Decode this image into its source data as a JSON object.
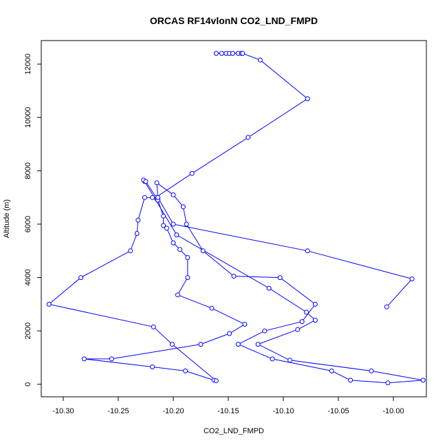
{
  "chart_data": {
    "type": "line",
    "title": "ORCAS RF14vlonN CO2_LND_FMPD",
    "xlabel": "CO2_LND_FMPD",
    "ylabel": "Altitude (m)",
    "xlim": [
      -10.32,
      -9.97
    ],
    "ylim": [
      -470,
      12880
    ],
    "xticks": [
      -10.3,
      -10.25,
      -10.2,
      -10.15,
      -10.1,
      -10.05,
      -10.0
    ],
    "xtick_labels": [
      "-10.30",
      "-10.25",
      "-10.20",
      "-10.15",
      "-10.10",
      "-10.05",
      "-10.00"
    ],
    "yticks": [
      0,
      2000,
      4000,
      6000,
      8000,
      10000,
      12000
    ],
    "ytick_labels": [
      "0",
      "2000",
      "4000",
      "6000",
      "8000",
      "10000",
      "12000"
    ],
    "grid": false,
    "series": [
      {
        "color": "#0000ff",
        "marker": "open-circle",
        "points": [
          [
            -10.161,
            12400
          ],
          [
            -10.156,
            12400
          ],
          [
            -10.152,
            12400
          ],
          [
            -10.149,
            12400
          ],
          [
            -10.146,
            12400
          ],
          [
            -10.141,
            12400
          ],
          [
            -10.138,
            12400
          ],
          [
            -10.137,
            12400
          ],
          [
            -10.121,
            12150
          ],
          [
            -10.078,
            10700
          ],
          [
            -10.132,
            9250
          ],
          [
            -10.183,
            7900
          ],
          [
            -10.216,
            7000
          ],
          [
            -10.215,
            6950
          ],
          [
            -10.214,
            6950
          ],
          [
            -10.215,
            7550
          ],
          [
            -10.2,
            7100
          ],
          [
            -10.191,
            6650
          ],
          [
            -10.188,
            6000
          ],
          [
            -10.173,
            5000
          ],
          [
            -10.145,
            4050
          ],
          [
            -10.103,
            4000
          ],
          [
            -10.071,
            3000
          ],
          [
            -10.083,
            2350
          ],
          [
            -10.117,
            2000
          ],
          [
            -10.141,
            1500
          ],
          [
            -10.11,
            950
          ],
          [
            -10.056,
            500
          ],
          [
            -10.039,
            150
          ],
          [
            -10.005,
            50
          ],
          [
            -9.973,
            150
          ],
          [
            -10.02,
            500
          ],
          [
            -10.094,
            900
          ],
          [
            -10.123,
            1500
          ],
          [
            -10.087,
            2050
          ],
          [
            -10.071,
            2400
          ],
          [
            -10.079,
            2700
          ],
          [
            -10.113,
            3600
          ],
          [
            -10.197,
            5600
          ],
          [
            -10.226,
            7600
          ],
          [
            -10.227,
            7650
          ],
          [
            -10.225,
            7600
          ],
          [
            -10.214,
            6900
          ],
          [
            -10.209,
            6300
          ],
          [
            -10.209,
            5950
          ],
          [
            -10.206,
            5850
          ],
          [
            -10.2,
            5300
          ],
          [
            -10.194,
            5050
          ],
          [
            -10.187,
            4750
          ],
          [
            -10.187,
            4000
          ],
          [
            -10.196,
            3350
          ],
          [
            -10.165,
            2850
          ],
          [
            -10.135,
            2250
          ],
          [
            -10.149,
            1900
          ],
          [
            -10.175,
            1500
          ],
          [
            -10.256,
            950
          ],
          [
            -10.281,
            950
          ],
          [
            -10.219,
            650
          ],
          [
            -10.189,
            500
          ],
          [
            -10.163,
            150
          ],
          [
            -10.161,
            130
          ],
          [
            -10.201,
            1500
          ],
          [
            -10.218,
            2150
          ],
          [
            -10.313,
            3000
          ],
          [
            -10.284,
            4000
          ],
          [
            -10.239,
            5000
          ],
          [
            -10.233,
            5650
          ],
          [
            -10.232,
            6150
          ],
          [
            -10.226,
            7000
          ],
          [
            -10.219,
            7000
          ],
          [
            -10.214,
            7000
          ],
          [
            -10.2,
            6000
          ],
          [
            -10.078,
            5000
          ],
          [
            -9.983,
            3950
          ],
          [
            -10.006,
            2900
          ]
        ]
      }
    ]
  }
}
